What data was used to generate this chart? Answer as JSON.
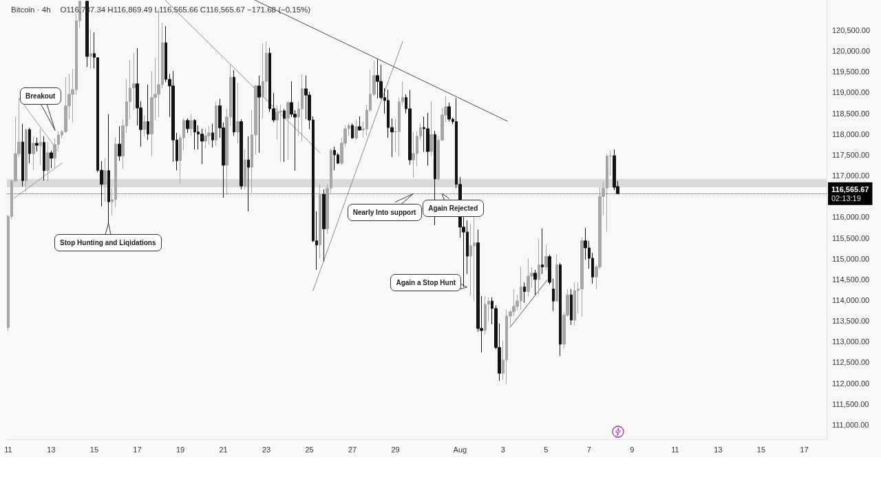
{
  "chart_data": {
    "type": "candlestick",
    "title": "Bitcoin · 4h",
    "subtitle": "O116,737.34 H116,869.49 L116,565.66 C116,565.67 −171.68 (−0.15%)",
    "x": [
      "--07-11T00:00",
      "--07-11T04:00",
      "--07-11T08:00",
      "--07-11T12:00",
      "--07-11T16:00",
      "--07-11T20:00",
      "--07-12T00:00",
      "--07-12T04:00",
      "--07-12T08:00",
      "--07-12T12:00",
      "--07-12T16:00",
      "--07-12T20:00",
      "--07-13T00:00",
      "--07-13T04:00",
      "--07-13T08:00",
      "--07-13T12:00",
      "--07-13T16:00",
      "--07-13T20:00",
      "--07-14T00:00",
      "--07-14T04:00",
      "--07-14T08:00",
      "--07-14T16:00",
      "--07-14T20:00",
      "--07-15T00:00",
      "--07-15T04:00",
      "--07-15T08:00",
      "--07-15T12:00",
      "--07-15T16:00",
      "--07-15T20:00",
      "--07-16T00:00",
      "--07-16T04:00",
      "--07-16T08:00",
      "--07-16T12:00",
      "--07-16T16:00",
      "--07-16T20:00",
      "--07-17T00:00",
      "--07-17T04:00",
      "--07-17T08:00",
      "--07-17T12:00",
      "--07-17T16:00",
      "--07-17T20:00",
      "--07-18T00:00",
      "--07-18T04:00",
      "--07-18T08:00",
      "--07-18T12:00",
      "--07-18T16:00",
      "--07-18T20:00",
      "--07-19T00:00",
      "--07-19T04:00",
      "--07-19T08:00",
      "--07-19T12:00",
      "--07-19T16:00",
      "--07-19T20:00",
      "--07-20T00:00",
      "--07-20T04:00",
      "--07-20T08:00",
      "--07-20T12:00",
      "--07-20T16:00",
      "--07-20T20:00",
      "--07-21T00:00",
      "--07-21T04:00",
      "--07-21T08:00",
      "--07-21T12:00",
      "--07-21T16:00",
      "--07-21T20:00",
      "--07-22T00:00",
      "--07-22T04:00",
      "--07-22T08:00",
      "--07-22T12:00",
      "--07-22T16:00",
      "--07-22T20:00",
      "--07-23T00:00",
      "--07-23T04:00",
      "--07-23T08:00",
      "--07-23T12:00",
      "--07-23T16:00",
      "--07-23T20:00",
      "--07-24T00:00",
      "--07-24T04:00",
      "--07-24T08:00",
      "--07-24T12:00",
      "--07-24T16:00",
      "--07-24T20:00",
      "--07-25T00:00",
      "--07-25T04:00",
      "--07-25T08:00",
      "--07-25T12:00",
      "--07-25T16:00",
      "--07-25T20:00",
      "--07-26T00:00",
      "--07-26T04:00",
      "--07-26T08:00",
      "--07-26T12:00",
      "--07-26T16:00",
      "--07-26T20:00",
      "--07-27T00:00",
      "--07-27T04:00",
      "--07-27T08:00",
      "--07-27T12:00",
      "--07-27T16:00",
      "--07-27T20:00",
      "--07-28T00:00",
      "--07-28T04:00",
      "--07-28T08:00",
      "--07-28T12:00",
      "--07-28T16:00",
      "--07-28T20:00",
      "--07-29T00:00",
      "--07-29T04:00",
      "--07-29T08:00",
      "--07-29T12:00",
      "--07-29T16:00",
      "--07-29T20:00",
      "--07-30T00:00",
      "--07-30T04:00",
      "--07-30T08:00",
      "--07-30T12:00",
      "--07-30T16:00",
      "--07-30T20:00",
      "--07-31T00:00",
      "--07-31T04:00",
      "--07-31T08:00",
      "--07-31T12:00",
      "--07-31T16:00",
      "--07-31T20:00",
      "--08-01T00:00",
      "--08-01T04:00",
      "--08-01T08:00",
      "--08-01T12:00",
      "--08-01T16:00",
      "--08-01T20:00",
      "--08-02T00:00",
      "--08-02T04:00",
      "--08-02T08:00",
      "--08-02T12:00",
      "--08-02T16:00",
      "--08-02T20:00",
      "--08-03T00:00",
      "--08-03T04:00",
      "--08-03T08:00",
      "--08-03T12:00",
      "--08-03T16:00",
      "--08-03T20:00",
      "--08-04T00:00",
      "--08-04T04:00",
      "--08-04T08:00",
      "--08-04T12:00",
      "--08-04T16:00",
      "--08-04T20:00",
      "--08-05T00:00",
      "--08-05T04:00",
      "--08-05T08:00",
      "--08-05T12:00",
      "--08-05T16:00",
      "--08-05T20:00",
      "--08-06T00:00",
      "--08-06T04:00",
      "--08-06T08:00",
      "--08-06T12:00",
      "--08-06T16:00",
      "--08-06T20:00",
      "--08-07T00:00",
      "--08-07T04:00",
      "--08-07T08:00",
      "--08-07T12:00",
      "--08-07T16:00",
      "--08-07T20:00",
      "--08-08T00:00",
      "--08-08T04:00",
      "--08-08T08:00"
    ],
    "ohlc": [
      [
        113340,
        116050,
        113250,
        116020
      ],
      [
        116020,
        116900,
        115950,
        116870
      ],
      [
        116870,
        118410,
        116850,
        117530
      ],
      [
        117530,
        118870,
        117450,
        117810
      ],
      [
        117810,
        118250,
        116740,
        116880
      ],
      [
        116880,
        118140,
        116620,
        118110
      ],
      [
        118110,
        118150,
        117300,
        117530
      ],
      [
        117530,
        117950,
        117130,
        117780
      ],
      [
        117780,
        117920,
        117580,
        117730
      ],
      [
        117720,
        118130,
        117250,
        117800
      ],
      [
        117800,
        117950,
        116880,
        117120
      ],
      [
        117120,
        117810,
        116860,
        117550
      ],
      [
        117550,
        117600,
        117180,
        117420
      ],
      [
        117420,
        117900,
        117180,
        117750
      ],
      [
        117750,
        118070,
        117650,
        117980
      ],
      [
        117980,
        118100,
        117900,
        118060
      ],
      [
        118060,
        119370,
        118020,
        118680
      ],
      [
        118680,
        119450,
        118360,
        118960
      ],
      [
        118960,
        119570,
        118280,
        119070
      ],
      [
        119070,
        120900,
        118950,
        120730
      ],
      [
        120730,
        121200,
        120550,
        121200
      ],
      [
        121200,
        121200,
        119620,
        119870
      ],
      [
        119870,
        120530,
        119570,
        119940
      ],
      [
        119940,
        120450,
        119580,
        119850
      ],
      [
        119840,
        119850,
        117080,
        117130
      ],
      [
        117130,
        117350,
        116260,
        116790
      ],
      [
        116790,
        117420,
        116370,
        117120
      ],
      [
        117120,
        118480,
        115850,
        116370
      ],
      [
        116370,
        116700,
        116040,
        116420
      ],
      [
        116420,
        117930,
        116230,
        117760
      ],
      [
        117760,
        118190,
        117360,
        117470
      ],
      [
        117470,
        118350,
        117160,
        118200
      ],
      [
        118200,
        119330,
        118030,
        118780
      ],
      [
        118780,
        119790,
        118360,
        119110
      ],
      [
        119110,
        119950,
        118570,
        119210
      ],
      [
        119210,
        120070,
        118210,
        118630
      ],
      [
        118630,
        118790,
        117700,
        118110
      ],
      [
        118110,
        118460,
        117940,
        118300
      ],
      [
        118300,
        119190,
        117860,
        118000
      ],
      [
        118000,
        119520,
        117470,
        118880
      ],
      [
        118880,
        119830,
        118330,
        118960
      ],
      [
        118960,
        121010,
        118410,
        119190
      ],
      [
        119190,
        120680,
        119100,
        120200
      ],
      [
        120200,
        120600,
        119250,
        119320
      ],
      [
        119320,
        119450,
        118410,
        119160
      ],
      [
        119160,
        119520,
        117330,
        117860
      ],
      [
        117860,
        118030,
        117130,
        117360
      ],
      [
        117360,
        117990,
        116800,
        117910
      ],
      [
        117910,
        118380,
        117610,
        118330
      ],
      [
        118330,
        118380,
        118030,
        118130
      ],
      [
        118130,
        118490,
        117960,
        118330
      ],
      [
        118330,
        118360,
        117630,
        118050
      ],
      [
        118050,
        118210,
        117630,
        118000
      ],
      [
        118000,
        118130,
        117280,
        117830
      ],
      [
        117830,
        118140,
        117660,
        117960
      ],
      [
        117960,
        118200,
        117750,
        118030
      ],
      [
        118030,
        118250,
        117680,
        117860
      ],
      [
        117860,
        118790,
        117710,
        118680
      ],
      [
        118680,
        118850,
        117910,
        118150
      ],
      [
        118150,
        118280,
        116470,
        117250
      ],
      [
        117250,
        118610,
        116540,
        118410
      ],
      [
        118410,
        119690,
        118200,
        119370
      ],
      [
        119370,
        119540,
        117960,
        118050
      ],
      [
        118050,
        119240,
        117780,
        118300
      ],
      [
        118300,
        118360,
        116670,
        116750
      ],
      [
        116750,
        117630,
        116670,
        117380
      ],
      [
        117380,
        117950,
        116140,
        117200
      ],
      [
        117200,
        118580,
        116590,
        117980
      ],
      [
        117980,
        119190,
        117500,
        119160
      ],
      [
        119160,
        119410,
        117550,
        118890
      ],
      [
        118890,
        120190,
        118380,
        119270
      ],
      [
        119270,
        120230,
        118790,
        119950
      ],
      [
        119950,
        120080,
        118530,
        118610
      ],
      [
        118610,
        118990,
        118280,
        118340
      ],
      [
        118340,
        118690,
        117860,
        118530
      ],
      [
        118530,
        118710,
        117330,
        118560
      ],
      [
        118560,
        118610,
        117330,
        118380
      ],
      [
        118380,
        118790,
        117380,
        118760
      ],
      [
        118760,
        119270,
        118410,
        118480
      ],
      [
        118480,
        118580,
        117120,
        118410
      ],
      [
        118410,
        118790,
        117960,
        118610
      ],
      [
        118610,
        119440,
        117830,
        119090
      ],
      [
        119090,
        119410,
        118360,
        118940
      ],
      [
        118940,
        119020,
        118120,
        118340
      ],
      [
        118340,
        118430,
        115400,
        115430
      ],
      [
        115430,
        116140,
        114730,
        115330
      ],
      [
        115330,
        116790,
        115010,
        116550
      ],
      [
        116550,
        116670,
        114930,
        115720
      ],
      [
        115720,
        116800,
        115600,
        116700
      ],
      [
        116700,
        117650,
        116580,
        117610
      ],
      [
        117610,
        117700,
        117130,
        117500
      ],
      [
        117500,
        117550,
        117280,
        117300
      ],
      [
        117300,
        117920,
        117250,
        117780
      ],
      [
        117780,
        118210,
        117700,
        118130
      ],
      [
        118130,
        118260,
        117950,
        118210
      ],
      [
        118210,
        118260,
        117880,
        117910
      ],
      [
        117910,
        118360,
        117860,
        118180
      ],
      [
        118180,
        118430,
        118080,
        118100
      ],
      [
        118100,
        118300,
        117920,
        118120
      ],
      [
        118120,
        118710,
        117960,
        118580
      ],
      [
        118580,
        119540,
        118530,
        118960
      ],
      [
        118960,
        119770,
        118910,
        119410
      ],
      [
        119410,
        119800,
        118860,
        119270
      ],
      [
        119270,
        119670,
        118840,
        118880
      ],
      [
        118880,
        119110,
        118490,
        118810
      ],
      [
        118810,
        119070,
        117910,
        118160
      ],
      [
        118160,
        118380,
        117450,
        118050
      ],
      [
        118050,
        118360,
        117560,
        118060
      ],
      [
        118060,
        118880,
        117460,
        118780
      ],
      [
        118780,
        119270,
        118700,
        118880
      ],
      [
        118880,
        118960,
        118500,
        118610
      ],
      [
        118610,
        119060,
        117260,
        117380
      ],
      [
        117380,
        118050,
        116950,
        117530
      ],
      [
        117530,
        118070,
        117230,
        117950
      ],
      [
        117950,
        118260,
        117860,
        118160
      ],
      [
        118160,
        118420,
        117570,
        118130
      ],
      [
        118130,
        118510,
        117240,
        117580
      ],
      [
        117580,
        118790,
        117460,
        117990
      ],
      [
        117990,
        118080,
        115810,
        116920
      ],
      [
        116920,
        117960,
        116870,
        117860
      ],
      [
        117860,
        118630,
        117830,
        118460
      ],
      [
        118460,
        118910,
        118290,
        118660
      ],
      [
        118660,
        118760,
        118300,
        118360
      ],
      [
        118360,
        118400,
        118240,
        118300
      ],
      [
        118300,
        118870,
        116700,
        116790
      ],
      [
        116790,
        116970,
        115510,
        115760
      ],
      [
        115760,
        116040,
        114320,
        115640
      ],
      [
        115640,
        115920,
        114630,
        115060
      ],
      [
        115060,
        115840,
        114100,
        115310
      ],
      [
        115310,
        116000,
        113980,
        115380
      ],
      [
        115380,
        115700,
        113240,
        113320
      ],
      [
        113320,
        114100,
        112740,
        113270
      ],
      [
        113270,
        114100,
        113170,
        113900
      ],
      [
        113900,
        114070,
        113490,
        113980
      ],
      [
        113980,
        114070,
        113420,
        113800
      ],
      [
        113800,
        113880,
        112820,
        112860
      ],
      [
        112860,
        113440,
        112060,
        112240
      ],
      [
        112240,
        113030,
        112080,
        112560
      ],
      [
        112560,
        113770,
        111980,
        113620
      ],
      [
        113620,
        113770,
        113390,
        113720
      ],
      [
        113720,
        114270,
        113620,
        113850
      ],
      [
        113850,
        114130,
        113750,
        113980
      ],
      [
        113980,
        114810,
        113770,
        114320
      ],
      [
        114320,
        114430,
        113940,
        114210
      ],
      [
        114210,
        115010,
        114100,
        114580
      ],
      [
        114580,
        114800,
        114300,
        114650
      ],
      [
        114650,
        114730,
        114130,
        114500
      ],
      [
        114500,
        115480,
        114130,
        114850
      ],
      [
        114850,
        115730,
        114630,
        114800
      ],
      [
        114800,
        115340,
        114720,
        115050
      ],
      [
        115050,
        115100,
        114380,
        114430
      ],
      [
        114270,
        114520,
        113740,
        113980
      ],
      [
        113980,
        115100,
        113960,
        114850
      ],
      [
        114850,
        114900,
        112660,
        112940
      ],
      [
        112940,
        113720,
        112830,
        113640
      ],
      [
        113640,
        114270,
        113600,
        114130
      ],
      [
        114130,
        114270,
        113400,
        113520
      ],
      [
        113520,
        114430,
        113390,
        114230
      ],
      [
        114230,
        114430,
        113680,
        114270
      ],
      [
        114270,
        115510,
        113600,
        115430
      ],
      [
        115430,
        115740,
        114980,
        115260
      ],
      [
        115260,
        115430,
        114760,
        115010
      ],
      [
        115010,
        115140,
        114400,
        114560
      ],
      [
        114560,
        114850,
        114270,
        114800
      ],
      [
        114800,
        116720,
        114750,
        116500
      ],
      [
        116500,
        116840,
        116040,
        116700
      ],
      [
        116700,
        117530,
        115640,
        117470
      ],
      [
        117470,
        117610,
        117000,
        117480
      ],
      [
        117480,
        117630,
        116650,
        116720
      ],
      [
        116737.34,
        116869.49,
        116565.66,
        116565.67
      ]
    ],
    "colors": [
      "#a6a6a6",
      "#a6a6a6",
      "#a6a6a6",
      "#a6a6a6",
      "#131313",
      "#a6a6a6",
      "#131313",
      "#a6a6a6",
      "#131313",
      "#a6a6a6",
      "#131313",
      "#a6a6a6",
      "#131313",
      "#a6a6a6",
      "#a6a6a6",
      "#a6a6a6",
      "#a6a6a6",
      "#a6a6a6",
      "#a6a6a6",
      "#a6a6a6",
      "#a6a6a6",
      "#131313",
      "#a6a6a6",
      "#131313",
      "#131313",
      "#131313",
      "#a6a6a6",
      "#131313",
      "#a6a6a6",
      "#a6a6a6",
      "#131313",
      "#a6a6a6",
      "#a6a6a6",
      "#a6a6a6",
      "#a6a6a6",
      "#131313",
      "#131313",
      "#a6a6a6",
      "#131313",
      "#a6a6a6",
      "#a6a6a6",
      "#a6a6a6",
      "#a6a6a6",
      "#131313",
      "#131313",
      "#131313",
      "#131313",
      "#a6a6a6",
      "#a6a6a6",
      "#131313",
      "#a6a6a6",
      "#131313",
      "#131313",
      "#131313",
      "#a6a6a6",
      "#a6a6a6",
      "#131313",
      "#a6a6a6",
      "#131313",
      "#131313",
      "#a6a6a6",
      "#a6a6a6",
      "#131313",
      "#a6a6a6",
      "#131313",
      "#a6a6a6",
      "#131313",
      "#a6a6a6",
      "#a6a6a6",
      "#131313",
      "#a6a6a6",
      "#a6a6a6",
      "#131313",
      "#131313",
      "#a6a6a6",
      "#a6a6a6",
      "#131313",
      "#a6a6a6",
      "#131313",
      "#131313",
      "#a6a6a6",
      "#a6a6a6",
      "#131313",
      "#131313",
      "#131313",
      "#131313",
      "#a6a6a6",
      "#131313",
      "#a6a6a6",
      "#a6a6a6",
      "#131313",
      "#131313",
      "#a6a6a6",
      "#a6a6a6",
      "#a6a6a6",
      "#131313",
      "#a6a6a6",
      "#131313",
      "#a6a6a6",
      "#a6a6a6",
      "#a6a6a6",
      "#a6a6a6",
      "#131313",
      "#131313",
      "#131313",
      "#131313",
      "#131313",
      "#a6a6a6",
      "#a6a6a6",
      "#a6a6a6",
      "#131313",
      "#131313",
      "#a6a6a6",
      "#a6a6a6",
      "#a6a6a6",
      "#131313",
      "#131313",
      "#a6a6a6",
      "#131313",
      "#a6a6a6",
      "#a6a6a6",
      "#a6a6a6",
      "#131313",
      "#131313",
      "#131313",
      "#131313",
      "#131313",
      "#131313",
      "#a6a6a6",
      "#a6a6a6",
      "#131313",
      "#131313",
      "#a6a6a6",
      "#a6a6a6",
      "#131313",
      "#131313",
      "#131313",
      "#a6a6a6",
      "#a6a6a6",
      "#a6a6a6",
      "#a6a6a6",
      "#a6a6a6",
      "#a6a6a6",
      "#131313",
      "#a6a6a6",
      "#a6a6a6",
      "#131313",
      "#a6a6a6",
      "#131313",
      "#a6a6a6",
      "#131313",
      "#131313",
      "#a6a6a6",
      "#131313",
      "#a6a6a6",
      "#a6a6a6",
      "#131313",
      "#a6a6a6",
      "#a6a6a6",
      "#a6a6a6",
      "#131313",
      "#131313",
      "#131313",
      "#a6a6a6",
      "#a6a6a6",
      "#a6a6a6",
      "#a6a6a6",
      "#a6a6a6",
      "#131313",
      "#131313"
    ],
    "xlim": [
      "--07-10T22:30",
      "--08-18T01:00"
    ],
    "xticks": [
      {
        "value": "--07-11",
        "label": "11"
      },
      {
        "value": "--07-13",
        "label": "13"
      },
      {
        "value": "--07-15",
        "label": "15"
      },
      {
        "value": "--07-17",
        "label": "17"
      },
      {
        "value": "--07-19",
        "label": "19"
      },
      {
        "value": "--07-21",
        "label": "21"
      },
      {
        "value": "--07-23",
        "label": "23"
      },
      {
        "value": "--07-25",
        "label": "25"
      },
      {
        "value": "--07-27",
        "label": "27"
      },
      {
        "value": "--07-29",
        "label": "29"
      },
      {
        "value": "--08-01",
        "label": "Aug"
      },
      {
        "value": "--08-03",
        "label": "3"
      },
      {
        "value": "--08-05",
        "label": "5"
      },
      {
        "value": "--08-07",
        "label": "7"
      },
      {
        "value": "--08-09",
        "label": "9"
      },
      {
        "value": "--08-11",
        "label": "11"
      },
      {
        "value": "--08-13",
        "label": "13"
      },
      {
        "value": "--08-15",
        "label": "15"
      },
      {
        "value": "--08-17",
        "label": "17"
      }
    ],
    "ylim": [
      110650,
      121230
    ],
    "yticks": [
      {
        "value": 111000,
        "label": "111,000.00"
      },
      {
        "value": 111500,
        "label": "111,500.00"
      },
      {
        "value": 112000,
        "label": "112,000.00"
      },
      {
        "value": 112500,
        "label": "112,500.00"
      },
      {
        "value": 113000,
        "label": "113,000.00"
      },
      {
        "value": 113500,
        "label": "113,500.00"
      },
      {
        "value": 114000,
        "label": "114,000.00"
      },
      {
        "value": 114500,
        "label": "114,500.00"
      },
      {
        "value": 115000,
        "label": "115,000.00"
      },
      {
        "value": 115500,
        "label": "115,500.00"
      },
      {
        "value": 116000,
        "label": "116,000.00"
      },
      {
        "value": 117000,
        "label": "117,000.00"
      },
      {
        "value": 117500,
        "label": "117,500.00"
      },
      {
        "value": 118000,
        "label": "118,000.00"
      },
      {
        "value": 118500,
        "label": "118,500.00"
      },
      {
        "value": 119000,
        "label": "119,000.00"
      },
      {
        "value": 119500,
        "label": "119,500.00"
      },
      {
        "value": 120000,
        "label": "120,000.00"
      },
      {
        "value": 120500,
        "label": "120,500.00"
      }
    ],
    "series": [
      {
        "type": "line",
        "x": [
          "--07-22T11:00",
          "--08-03T05:00"
        ],
        "values": [
          121230,
          118310
        ],
        "color": "#4a4a4a",
        "line_style": "solid"
      },
      {
        "type": "line",
        "x": [
          "--07-18T07:00",
          "--07-25T12:00"
        ],
        "values": [
          121230,
          117550
        ],
        "color": "#777777",
        "line_style": "dotted"
      },
      {
        "type": "line",
        "x": [
          "--07-25T04:00",
          "--07-29T08:00"
        ],
        "values": [
          114230,
          120230
        ],
        "color": "#777777",
        "line_style": "dotted"
      },
      {
        "type": "line",
        "x": [
          "--07-11T12:00",
          "--07-13T08:00"
        ],
        "values": [
          118870,
          117580
        ],
        "color": "#888888",
        "line_style": "dotted"
      },
      {
        "type": "line",
        "x": [
          "--07-11T06:00",
          "--07-13T12:00"
        ],
        "values": [
          116450,
          117300
        ],
        "color": "#888888",
        "line_style": "dotted"
      },
      {
        "type": "line",
        "x": [
          "--08-03T08:00",
          "--08-05T01:00"
        ],
        "values": [
          113350,
          114480
        ],
        "color": "#555555",
        "line_style": "solid"
      }
    ],
    "marker": "none",
    "ref_lines": [
      {
        "axis": "y",
        "value": 116565.67,
        "label": "116,565.67\n02:13:19",
        "color": "#555555",
        "line_style": "dotted"
      }
    ],
    "bands": [
      {
        "axis": "y",
        "from": 116720,
        "to": 116920,
        "color": "#d6d6d6"
      }
    ],
    "annotations": [
      {
        "text": "Breakout",
        "x": "--07-13T04:00",
        "y": 118080
      },
      {
        "text": "Stop Hunting and Liqidations",
        "x": "--07-15T16:00",
        "y": 115850
      },
      {
        "text": "Nearly Into support",
        "x": "--07-29T20:00",
        "y": 116570
      },
      {
        "text": "Again Rejected",
        "x": "--07-31T04:00",
        "y": 116570
      },
      {
        "text": "Again a Stop Hunt",
        "x": "--08-01T08:00",
        "y": 114320
      }
    ]
  }
}
